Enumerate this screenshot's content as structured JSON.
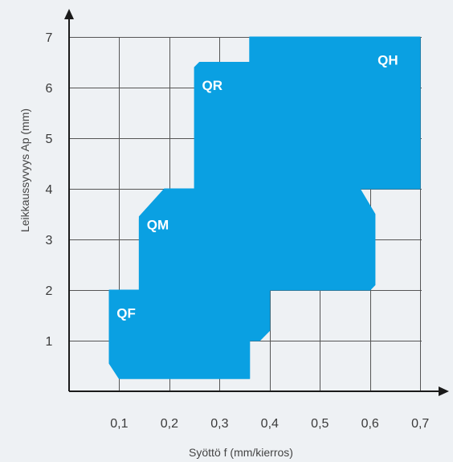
{
  "chart_data": {
    "type": "area",
    "title": "",
    "xlabel": "Syöttö f (mm/kierros)",
    "ylabel": "Leikkaussyvyys  Ap (mm)",
    "x_ticks": [
      "0,1",
      "0,2",
      "0,3",
      "0,4",
      "0,5",
      "0,6",
      "0,7"
    ],
    "y_ticks": [
      "1",
      "2",
      "3",
      "4",
      "5",
      "6",
      "7"
    ],
    "xlim": [
      0,
      0.7
    ],
    "ylim": [
      0,
      7
    ],
    "grid": true,
    "region_color": "#0aa0e2",
    "regions": [
      {
        "name": "QF",
        "polygon": [
          [
            0.08,
            2.0
          ],
          [
            0.14,
            2.0
          ],
          [
            0.14,
            3.4
          ],
          [
            0.36,
            3.4
          ],
          [
            0.36,
            0.25
          ],
          [
            0.1,
            0.25
          ],
          [
            0.08,
            0.55
          ]
        ]
      },
      {
        "name": "QM",
        "polygon": [
          [
            0.14,
            3.45
          ],
          [
            0.19,
            4.0
          ],
          [
            0.36,
            4.0
          ],
          [
            0.36,
            1.0
          ],
          [
            0.14,
            1.0
          ]
        ]
      },
      {
        "name": "QR",
        "polygon": [
          [
            0.25,
            6.4
          ],
          [
            0.26,
            6.5
          ],
          [
            0.36,
            6.5
          ],
          [
            0.36,
            1.0
          ],
          [
            0.25,
            1.0
          ]
        ]
      },
      {
        "name": "QH",
        "polygon": [
          [
            0.36,
            7.0
          ],
          [
            0.7,
            7.0
          ],
          [
            0.7,
            4.0
          ],
          [
            0.36,
            4.0
          ]
        ]
      },
      {
        "name": "",
        "polygon": [
          [
            0.36,
            4.0
          ],
          [
            0.58,
            4.0
          ],
          [
            0.61,
            3.5
          ],
          [
            0.61,
            2.1
          ],
          [
            0.6,
            2.0
          ],
          [
            0.4,
            2.0
          ],
          [
            0.4,
            1.2
          ],
          [
            0.38,
            1.0
          ],
          [
            0.36,
            1.0
          ]
        ]
      }
    ]
  },
  "colors": {
    "background": "#eef1f4",
    "region": "#0aa0e2",
    "grid": "#555555",
    "axis": "#1a1a1a"
  }
}
